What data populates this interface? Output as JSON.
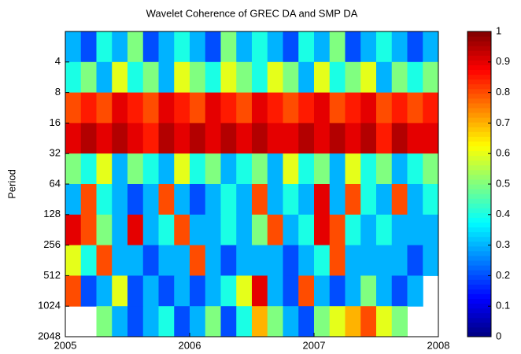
{
  "chart_data": {
    "type": "heatmap",
    "title": "Wavelet Coherence of  GREC DA and SMP DA",
    "ylabel": "Period",
    "xlim": [
      2005,
      2008
    ],
    "xticks": [
      2005,
      2006,
      2007,
      2008
    ],
    "ylim": [
      2,
      2048
    ],
    "yticks": [
      4,
      8,
      16,
      32,
      64,
      128,
      256,
      512,
      1024,
      2048
    ],
    "ylog": true,
    "yreversed": true,
    "y": [
      2,
      4,
      8,
      16,
      32,
      64,
      128,
      256,
      512,
      1024
    ],
    "z": [
      [
        0.3,
        0.2,
        0.4,
        0.3,
        0.5,
        0.2,
        0.3,
        0.4,
        0.3,
        0.2,
        0.5,
        0.3,
        0.4,
        0.3,
        0.2,
        0.4,
        0.3,
        0.5,
        0.2,
        0.3,
        0.4,
        0.3,
        0.2,
        0.3
      ],
      [
        0.4,
        0.5,
        0.3,
        0.6,
        0.4,
        0.5,
        0.3,
        0.6,
        0.5,
        0.4,
        0.6,
        0.5,
        0.4,
        0.6,
        0.5,
        0.3,
        0.6,
        0.4,
        0.5,
        0.6,
        0.3,
        0.5,
        0.4,
        0.5
      ],
      [
        0.8,
        0.85,
        0.8,
        0.9,
        0.85,
        0.8,
        0.9,
        0.85,
        0.8,
        0.9,
        0.85,
        0.8,
        0.9,
        0.85,
        0.8,
        0.85,
        0.9,
        0.8,
        0.85,
        0.9,
        0.8,
        0.85,
        0.8,
        0.85
      ],
      [
        0.9,
        0.95,
        0.9,
        0.95,
        0.9,
        0.85,
        0.95,
        0.9,
        0.95,
        0.9,
        0.95,
        0.9,
        0.95,
        0.9,
        0.9,
        0.95,
        0.9,
        0.95,
        0.9,
        0.95,
        0.85,
        0.95,
        0.9,
        0.9
      ],
      [
        0.5,
        0.4,
        0.6,
        0.3,
        0.5,
        0.4,
        0.3,
        0.6,
        0.4,
        0.5,
        0.3,
        0.4,
        0.5,
        0.3,
        0.6,
        0.4,
        0.5,
        0.3,
        0.6,
        0.4,
        0.5,
        0.3,
        0.4,
        0.5
      ],
      [
        0.3,
        0.8,
        0.4,
        0.3,
        0.2,
        0.3,
        0.8,
        0.3,
        0.2,
        0.3,
        0.4,
        0.3,
        0.8,
        0.3,
        0.4,
        0.3,
        0.9,
        0.3,
        0.8,
        0.4,
        0.3,
        0.8,
        0.3,
        0.4
      ],
      [
        0.9,
        0.8,
        0.5,
        0.3,
        0.9,
        0.3,
        0.4,
        0.8,
        0.3,
        0.3,
        0.4,
        0.3,
        0.5,
        0.8,
        0.3,
        0.4,
        0.9,
        0.8,
        0.4,
        0.3,
        0.4,
        0.3,
        0.3,
        0.3
      ],
      [
        0.6,
        0.4,
        0.8,
        0.3,
        0.3,
        0.2,
        0.3,
        0.3,
        0.8,
        0.3,
        0.2,
        0.3,
        0.3,
        0.3,
        0.2,
        0.3,
        0.4,
        0.8,
        0.3,
        0.3,
        0.3,
        0.3,
        0.2,
        0.3
      ],
      [
        0.8,
        0.2,
        0.3,
        0.6,
        0.2,
        0.3,
        0.2,
        0.3,
        0.2,
        0.3,
        0.4,
        0.6,
        0.9,
        0.3,
        0.2,
        0.8,
        0.3,
        0.2,
        0.3,
        0.5,
        0.3,
        0.2,
        0.3,
        null
      ],
      [
        null,
        null,
        0.5,
        0.3,
        0.2,
        0.3,
        0.4,
        0.2,
        0.3,
        0.5,
        0.2,
        0.4,
        0.7,
        0.5,
        0.3,
        0.2,
        0.5,
        0.6,
        0.7,
        0.8,
        0.6,
        0.5,
        null,
        null
      ]
    ],
    "colormap": "jet",
    "clim": [
      0,
      1
    ],
    "cticks": [
      0,
      0.1,
      0.2,
      0.3,
      0.4,
      0.5,
      0.6,
      0.7,
      0.8,
      0.9,
      1
    ]
  }
}
